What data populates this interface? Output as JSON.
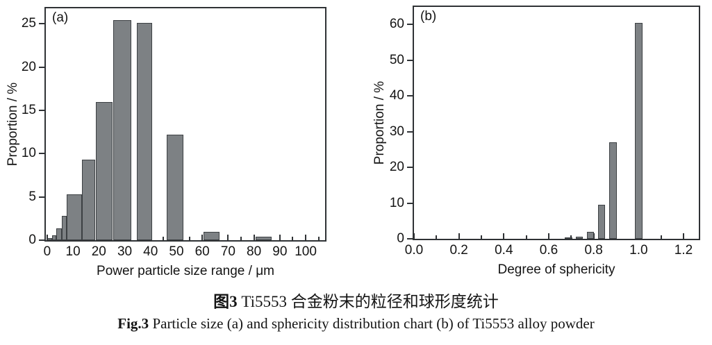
{
  "figure": {
    "caption_cn_prefix": "图3",
    "caption_cn_text": " Ti5553 合金粉末的粒径和球形度统计",
    "caption_en_prefix": "Fig.3",
    "caption_en_text": " Particle size (a) and sphericity distribution chart (b) of Ti5553 alloy powder"
  },
  "style": {
    "bar_fill": "#7d8184",
    "bar_border": "#3c4043",
    "axis_color": "#2f3235",
    "text_color": "#141414",
    "background": "#ffffff"
  },
  "chart_data": [
    {
      "type": "bar",
      "panel_label": "(a)",
      "xlabel": "Power particle size range / μm",
      "ylabel": "Proportion / %",
      "xlim": [
        -0.5,
        107.5
      ],
      "ylim": [
        0,
        26.8
      ],
      "grid": false,
      "legend": null,
      "x_ticks": {
        "values": [
          0,
          10,
          20,
          30,
          40,
          50,
          60,
          70,
          80,
          90,
          100
        ],
        "labels": [
          "0",
          "10",
          "20",
          "30",
          "40",
          "50",
          "60",
          "70",
          "80",
          "90",
          "100"
        ]
      },
      "x_minor_ticks": [
        5,
        15,
        25,
        35,
        45,
        55,
        65,
        75,
        85,
        95,
        105
      ],
      "y_ticks": {
        "values": [
          0,
          5,
          10,
          15,
          20,
          25
        ],
        "labels": [
          "0",
          "5",
          "10",
          "15",
          "20",
          "25"
        ]
      },
      "y_minor_ticks": [],
      "bars": [
        {
          "from": 0.0,
          "to": 1.8,
          "value": 0.25
        },
        {
          "from": 1.8,
          "to": 3.6,
          "value": 0.6
        },
        {
          "from": 3.6,
          "to": 5.6,
          "value": 1.4
        },
        {
          "from": 5.6,
          "to": 7.6,
          "value": 2.8
        },
        {
          "from": 7.6,
          "to": 13.5,
          "value": 5.3
        },
        {
          "from": 13.5,
          "to": 18.6,
          "value": 9.3
        },
        {
          "from": 18.8,
          "to": 25.4,
          "value": 16.0
        },
        {
          "from": 25.6,
          "to": 32.5,
          "value": 25.4
        },
        {
          "from": 34.7,
          "to": 40.5,
          "value": 25.1
        },
        {
          "from": 46.2,
          "to": 52.6,
          "value": 12.2
        },
        {
          "from": 60.5,
          "to": 66.8,
          "value": 1.0
        },
        {
          "from": 80.5,
          "to": 86.8,
          "value": 0.4
        }
      ]
    },
    {
      "type": "bar",
      "panel_label": "(b)",
      "xlabel": "Degree of sphericity",
      "ylabel": "Proportion / %",
      "xlim": [
        0,
        1.268
      ],
      "ylim": [
        0,
        64.9
      ],
      "grid": false,
      "legend": null,
      "x_ticks": {
        "values": [
          0.0,
          0.2,
          0.4,
          0.6,
          0.8,
          1.0,
          1.2
        ],
        "labels": [
          "0.0",
          "0.2",
          "0.4",
          "0.6",
          "0.8",
          "1.0",
          "1.2"
        ]
      },
      "x_minor_ticks": [
        0.1,
        0.3,
        0.5,
        0.7,
        0.9,
        1.1
      ],
      "y_ticks": {
        "values": [
          0,
          10,
          20,
          30,
          40,
          50,
          60
        ],
        "labels": [
          "0",
          "10",
          "20",
          "30",
          "40",
          "50",
          "60"
        ]
      },
      "y_minor_ticks": [],
      "bars": [
        {
          "from": 0.672,
          "to": 0.704,
          "value": 0.2
        },
        {
          "from": 0.72,
          "to": 0.752,
          "value": 0.5
        },
        {
          "from": 0.77,
          "to": 0.802,
          "value": 2.0
        },
        {
          "from": 0.82,
          "to": 0.852,
          "value": 9.5
        },
        {
          "from": 0.87,
          "to": 0.902,
          "value": 27.1
        },
        {
          "from": 0.985,
          "to": 1.017,
          "value": 60.5
        }
      ]
    }
  ]
}
